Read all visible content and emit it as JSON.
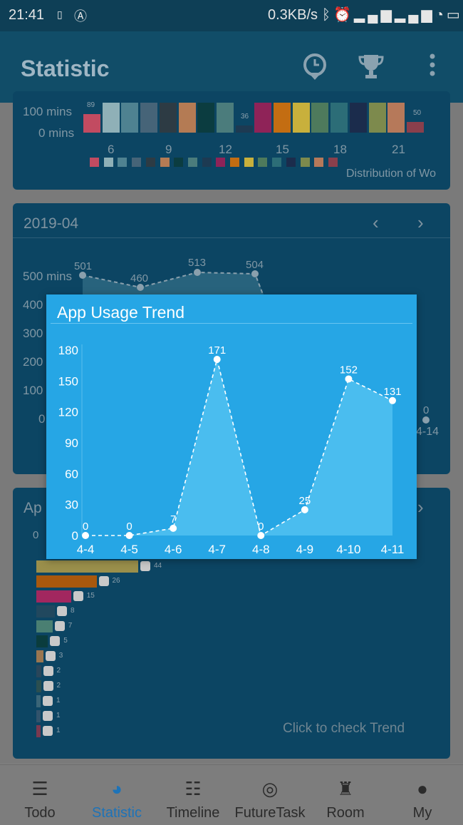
{
  "status_bar": {
    "time": "21:41",
    "network_speed": "0.3KB/s",
    "icons": [
      "bluetooth-icon",
      "alarm-icon",
      "signal-icon",
      "signal-icon",
      "wifi-icon",
      "battery-icon"
    ]
  },
  "app_bar": {
    "title": "Statistic",
    "actions": [
      "clock-icon",
      "trophy-icon",
      "more-icon"
    ]
  },
  "hourly_card": {
    "y_labels": [
      "100 mins",
      "0 mins"
    ],
    "x_ticks": [
      "6",
      "9",
      "12",
      "15",
      "18",
      "21"
    ],
    "bar_labels": {
      "first": "89",
      "mid": "36",
      "last": "50"
    },
    "legend_text": "Distribution of Wo",
    "bar_colors": [
      "#c24b61",
      "#8fb0b7",
      "#4f8291",
      "#466478",
      "#2d3b44",
      "#b47b54",
      "#0b3c40",
      "#4b7c7c",
      "#1d3a52",
      "#8f2358",
      "#c36d12",
      "#c8b03c",
      "#4e7a5c",
      "#2c6d77",
      "#1b2c4c",
      "#7d8a4d",
      "#b6795a",
      "#8a3f4c"
    ]
  },
  "monthly_card": {
    "title": "2019-04",
    "y_labels": [
      "500 mins",
      "400",
      "300",
      "200",
      "100",
      "0"
    ],
    "points": [
      {
        "label": "501"
      },
      {
        "label": "460"
      },
      {
        "label": "513"
      },
      {
        "label": "504"
      }
    ],
    "last_point": {
      "label": "0",
      "x_label": "4-14"
    }
  },
  "app_card": {
    "title_partial": "Ap",
    "axis_zero": "0",
    "rows": [
      {
        "value": "44",
        "color": "#9a8f4b"
      },
      {
        "value": "26",
        "color": "#a8580d"
      },
      {
        "value": "15",
        "color": "#a2275f"
      },
      {
        "value": "8",
        "color": "#21485e"
      },
      {
        "value": "7",
        "color": "#4a7f72"
      },
      {
        "value": "5",
        "color": "#0a3c3d"
      },
      {
        "value": "3",
        "color": "#9a7650"
      },
      {
        "value": "2",
        "color": "#29465a"
      },
      {
        "value": "2",
        "color": "#2b4f50"
      },
      {
        "value": "1",
        "color": "#3a6577"
      },
      {
        "value": "1",
        "color": "#31536c"
      },
      {
        "value": "1",
        "color": "#7a3950"
      }
    ],
    "footer_link": "Click to check Trend"
  },
  "dialog": {
    "title": "App Usage Trend"
  },
  "chart_data": {
    "type": "area",
    "title": "App Usage Trend",
    "categories": [
      "4-4",
      "4-5",
      "4-6",
      "4-7",
      "4-8",
      "4-9",
      "4-10",
      "4-11"
    ],
    "values": [
      0,
      0,
      7,
      171,
      0,
      25,
      152,
      131
    ],
    "y_ticks": [
      "0",
      "30",
      "60",
      "90",
      "120",
      "150",
      "180"
    ],
    "ylim": [
      0,
      180
    ],
    "grid": false
  },
  "bottom_nav": [
    {
      "label": "Todo",
      "icon": "list-icon",
      "active": false
    },
    {
      "label": "Statistic",
      "icon": "pie-chart-icon",
      "active": true
    },
    {
      "label": "Timeline",
      "icon": "timeline-icon",
      "active": false
    },
    {
      "label": "FutureTask",
      "icon": "target-icon",
      "active": false
    },
    {
      "label": "Room",
      "icon": "room-icon",
      "active": false
    },
    {
      "label": "My",
      "icon": "person-icon",
      "active": false
    }
  ],
  "colors": {
    "accent": "#26a6e5",
    "active_nav": "#1d73b8",
    "app_bar": "#114d68"
  }
}
